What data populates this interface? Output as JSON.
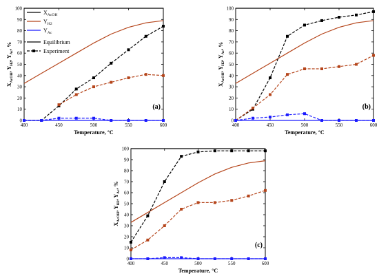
{
  "chart_data": [
    {
      "type": "line",
      "panel_label": "(a)",
      "xlabel": "Temperature, °C",
      "ylabel": "X_AcOH, Y_H2, Y_Ac, %",
      "xlim": [
        400,
        600
      ],
      "ylim": [
        0,
        100
      ],
      "xticks": [
        400,
        450,
        500,
        550,
        600
      ],
      "yticks": [
        0,
        10,
        20,
        30,
        40,
        50,
        60,
        70,
        80,
        90,
        100
      ],
      "legend": {
        "placement": "top-left",
        "entries": [
          {
            "label": "X",
            "sub": "AcOH",
            "color": "#000000",
            "style": "solid"
          },
          {
            "label": "Y",
            "sub": "H2",
            "color": "#b5451b",
            "style": "solid"
          },
          {
            "label": "Y",
            "sub": "Ac",
            "color": "#1a1aff",
            "style": "solid"
          },
          {
            "label": "Equilibrium",
            "sub": "",
            "color": "#000000",
            "style": "solid"
          },
          {
            "label": "Experiment",
            "sub": "",
            "color": "#000000",
            "style": "dashed-square"
          }
        ]
      },
      "series": [
        {
          "kind": "equilibrium",
          "color": "#000000",
          "x": [
            400,
            600
          ],
          "y": [
            100,
            100
          ]
        },
        {
          "kind": "equilibrium",
          "color": "#b5451b",
          "x": [
            400,
            425,
            450,
            475,
            500,
            525,
            550,
            575,
            600
          ],
          "y": [
            33,
            42,
            51,
            60,
            69,
            77,
            83,
            87,
            89
          ]
        },
        {
          "kind": "equilibrium",
          "color": "#1a1aff",
          "x": [
            400,
            600
          ],
          "y": [
            0,
            0
          ]
        },
        {
          "kind": "experiment",
          "color": "#000000",
          "x": [
            400,
            425,
            450,
            475,
            500,
            525,
            550,
            575,
            600
          ],
          "y": [
            0,
            0,
            13,
            28,
            38,
            51,
            63,
            75,
            84
          ]
        },
        {
          "kind": "experiment",
          "color": "#b5451b",
          "x": [
            450,
            475,
            500,
            525,
            550,
            575,
            600
          ],
          "y": [
            14,
            23,
            30,
            34,
            38,
            41,
            40
          ]
        },
        {
          "kind": "experiment",
          "color": "#1a1aff",
          "x": [
            400,
            425,
            450,
            475,
            500,
            525,
            550,
            575,
            600
          ],
          "y": [
            0,
            0,
            2,
            2,
            2,
            0,
            0,
            0,
            0
          ]
        }
      ]
    },
    {
      "type": "line",
      "panel_label": "(b)",
      "xlabel": "Temperature, °C",
      "ylabel": "X_AcOH, Y_H2, Y_Ac, %",
      "xlim": [
        400,
        600
      ],
      "ylim": [
        0,
        100
      ],
      "xticks": [
        400,
        450,
        500,
        550,
        600
      ],
      "yticks": [
        0,
        10,
        20,
        30,
        40,
        50,
        60,
        70,
        80,
        90,
        100
      ],
      "series": [
        {
          "kind": "equilibrium",
          "color": "#000000",
          "x": [
            400,
            600
          ],
          "y": [
            100,
            100
          ]
        },
        {
          "kind": "equilibrium",
          "color": "#b5451b",
          "x": [
            400,
            425,
            450,
            475,
            500,
            525,
            550,
            575,
            600
          ],
          "y": [
            33,
            42,
            51,
            60,
            69,
            77,
            83,
            87,
            89
          ]
        },
        {
          "kind": "equilibrium",
          "color": "#1a1aff",
          "x": [
            400,
            600
          ],
          "y": [
            0,
            0
          ]
        },
        {
          "kind": "experiment",
          "color": "#000000",
          "x": [
            400,
            425,
            450,
            475,
            500,
            525,
            550,
            575,
            600
          ],
          "y": [
            0,
            10,
            38,
            75,
            85,
            89,
            92,
            94,
            97
          ]
        },
        {
          "kind": "experiment",
          "color": "#b5451b",
          "x": [
            400,
            425,
            450,
            475,
            500,
            525,
            550,
            575,
            600
          ],
          "y": [
            0,
            11,
            23,
            41,
            46,
            46,
            48,
            50,
            58
          ]
        },
        {
          "kind": "experiment",
          "color": "#1a1aff",
          "x": [
            400,
            425,
            450,
            475,
            500,
            525,
            550,
            575,
            600
          ],
          "y": [
            0,
            2,
            3,
            5,
            6,
            0,
            0,
            0,
            0
          ]
        }
      ]
    },
    {
      "type": "line",
      "panel_label": "(c)",
      "xlabel": "Temperature, °C",
      "ylabel": "X_AcOH, Y_H2, Y_Ac, %",
      "xlim": [
        400,
        600
      ],
      "ylim": [
        0,
        100
      ],
      "xticks": [
        400,
        450,
        500,
        550,
        600
      ],
      "yticks": [
        0,
        10,
        20,
        30,
        40,
        50,
        60,
        70,
        80,
        90,
        100
      ],
      "series": [
        {
          "kind": "equilibrium",
          "color": "#000000",
          "x": [
            400,
            600
          ],
          "y": [
            100,
            100
          ]
        },
        {
          "kind": "equilibrium",
          "color": "#b5451b",
          "x": [
            400,
            425,
            450,
            475,
            500,
            525,
            550,
            575,
            600
          ],
          "y": [
            33,
            42,
            51,
            60,
            69,
            77,
            83,
            87,
            89
          ]
        },
        {
          "kind": "equilibrium",
          "color": "#1a1aff",
          "x": [
            400,
            600
          ],
          "y": [
            0,
            0
          ]
        },
        {
          "kind": "experiment",
          "color": "#000000",
          "x": [
            400,
            425,
            450,
            475,
            500,
            525,
            550,
            575,
            600
          ],
          "y": [
            15,
            39,
            70,
            93,
            97,
            98,
            98,
            98,
            98
          ]
        },
        {
          "kind": "experiment",
          "color": "#b5451b",
          "x": [
            400,
            425,
            450,
            475,
            500,
            525,
            550,
            575,
            600
          ],
          "y": [
            8,
            17,
            30,
            45,
            51,
            51,
            53,
            57,
            62
          ]
        },
        {
          "kind": "experiment",
          "color": "#1a1aff",
          "x": [
            400,
            425,
            450,
            475,
            500,
            525,
            550,
            575,
            600
          ],
          "y": [
            0,
            0,
            1,
            1,
            0,
            0,
            0,
            0,
            0
          ]
        }
      ]
    }
  ]
}
